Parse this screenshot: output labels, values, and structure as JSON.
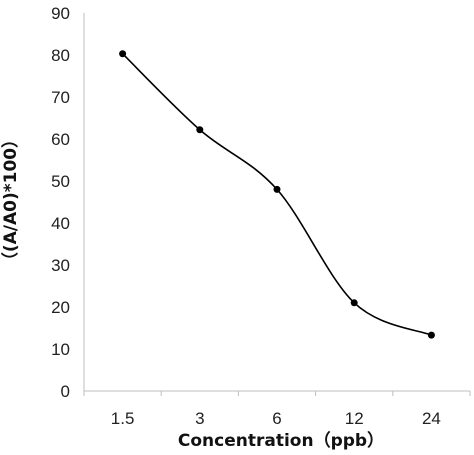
{
  "chart_data": {
    "type": "line",
    "categories": [
      "1.5",
      "3",
      "6",
      "12",
      "24"
    ],
    "series": [
      {
        "values": [
          80.3,
          62.2,
          48.0,
          21.0,
          13.3
        ]
      }
    ],
    "title": "",
    "xlabel": "Concentration（ppb）",
    "ylabel": "（(A/A0)*100）",
    "ylim": [
      0,
      90
    ],
    "yticks": [
      0,
      10,
      20,
      30,
      40,
      50,
      60,
      70,
      80,
      90
    ],
    "grid": false,
    "legend": "none",
    "smooth": true,
    "colors": {
      "line": "#000000",
      "axis": "#bfbfbf"
    }
  }
}
